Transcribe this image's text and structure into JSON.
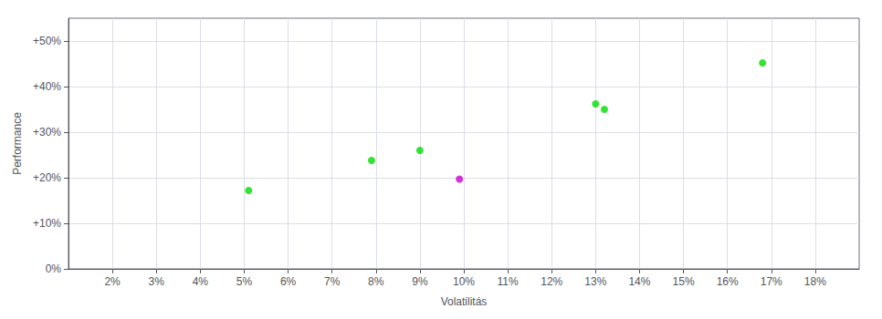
{
  "chart_data": {
    "type": "scatter",
    "xlabel": "Volatilitás",
    "ylabel": "Performance",
    "x": [
      0.051,
      0.079,
      0.09,
      0.099,
      0.13,
      0.132,
      0.168
    ],
    "values": [
      0.172,
      0.238,
      0.26,
      0.197,
      0.362,
      0.35,
      0.452
    ],
    "colors": [
      "#00dd00",
      "#00dd00",
      "#00dd00",
      "#cc00cc",
      "#00dd00",
      "#00dd00",
      "#00dd00"
    ],
    "xlim": [
      0.01,
      0.19
    ],
    "ylim": [
      0.0,
      0.55
    ],
    "xticks": [
      {
        "value": 0.02,
        "label": "2%"
      },
      {
        "value": 0.03,
        "label": "3%"
      },
      {
        "value": 0.04,
        "label": "4%"
      },
      {
        "value": 0.05,
        "label": "5%"
      },
      {
        "value": 0.06,
        "label": "6%"
      },
      {
        "value": 0.07,
        "label": "7%"
      },
      {
        "value": 0.08,
        "label": "8%"
      },
      {
        "value": 0.09,
        "label": "9%"
      },
      {
        "value": 0.1,
        "label": "10%"
      },
      {
        "value": 0.11,
        "label": "11%"
      },
      {
        "value": 0.12,
        "label": "12%"
      },
      {
        "value": 0.13,
        "label": "13%"
      },
      {
        "value": 0.14,
        "label": "14%"
      },
      {
        "value": 0.15,
        "label": "15%"
      },
      {
        "value": 0.16,
        "label": "16%"
      },
      {
        "value": 0.17,
        "label": "17%"
      },
      {
        "value": 0.18,
        "label": "18%"
      }
    ],
    "yticks": [
      {
        "value": 0.0,
        "label": "0%"
      },
      {
        "value": 0.1,
        "label": "+10%"
      },
      {
        "value": 0.2,
        "label": "+20%"
      },
      {
        "value": 0.3,
        "label": "+30%"
      },
      {
        "value": 0.4,
        "label": "+40%"
      },
      {
        "value": 0.5,
        "label": "+50%"
      }
    ],
    "grid": true
  }
}
